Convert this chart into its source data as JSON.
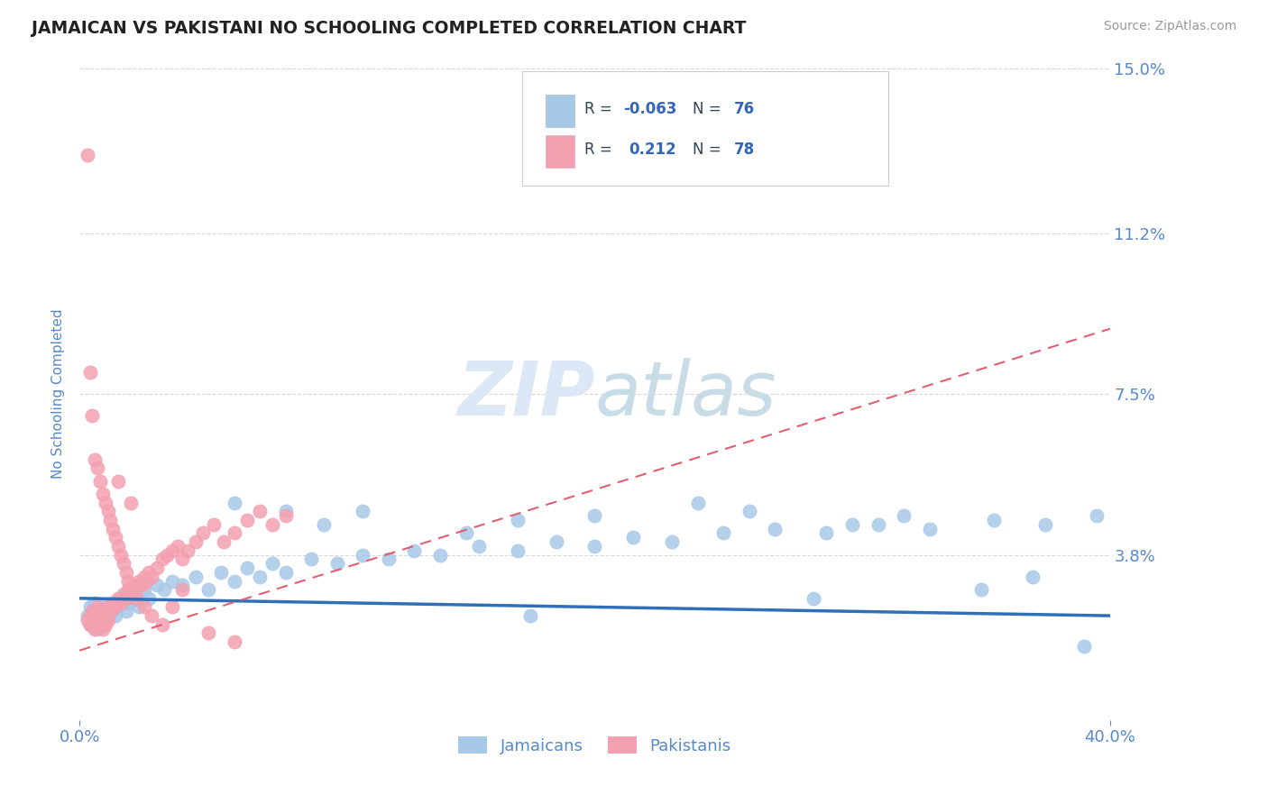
{
  "title": "JAMAICAN VS PAKISTANI NO SCHOOLING COMPLETED CORRELATION CHART",
  "source": "Source: ZipAtlas.com",
  "ylabel": "No Schooling Completed",
  "xlim": [
    0.0,
    0.4
  ],
  "ylim": [
    0.0,
    0.15
  ],
  "xtick_labels": [
    "0.0%",
    "40.0%"
  ],
  "ytick_vals": [
    0.038,
    0.075,
    0.112,
    0.15
  ],
  "ytick_labels": [
    "3.8%",
    "7.5%",
    "11.2%",
    "15.0%"
  ],
  "legend_r_jamaican": "-0.063",
  "legend_n_jamaican": "76",
  "legend_r_pakistani": "0.212",
  "legend_n_pakistani": "78",
  "jamaican_color": "#a8c8e8",
  "pakistani_color": "#f4a0b0",
  "trend_jamaican_color": "#3070b8",
  "trend_pakistani_color": "#e06070",
  "axis_label_color": "#5588cc",
  "tick_color": "#5588cc",
  "grid_color": "#d8d8d8",
  "watermark_color": "#dce8f5",
  "legend_text_color": "#334455",
  "legend_rval_color": "#3366bb",
  "jamaican_x": [
    0.003,
    0.004,
    0.004,
    0.005,
    0.006,
    0.006,
    0.007,
    0.007,
    0.008,
    0.009,
    0.009,
    0.01,
    0.01,
    0.011,
    0.012,
    0.013,
    0.013,
    0.014,
    0.015,
    0.016,
    0.017,
    0.018,
    0.019,
    0.02,
    0.022,
    0.023,
    0.025,
    0.027,
    0.03,
    0.033,
    0.036,
    0.04,
    0.045,
    0.05,
    0.055,
    0.06,
    0.065,
    0.07,
    0.075,
    0.08,
    0.09,
    0.1,
    0.11,
    0.12,
    0.13,
    0.14,
    0.155,
    0.17,
    0.185,
    0.2,
    0.215,
    0.23,
    0.25,
    0.27,
    0.29,
    0.31,
    0.33,
    0.355,
    0.375,
    0.395,
    0.06,
    0.08,
    0.095,
    0.11,
    0.15,
    0.17,
    0.2,
    0.24,
    0.26,
    0.3,
    0.32,
    0.35,
    0.37,
    0.39,
    0.175,
    0.285
  ],
  "jamaican_y": [
    0.024,
    0.022,
    0.026,
    0.025,
    0.023,
    0.027,
    0.021,
    0.025,
    0.024,
    0.022,
    0.026,
    0.025,
    0.023,
    0.024,
    0.026,
    0.025,
    0.027,
    0.024,
    0.026,
    0.028,
    0.027,
    0.025,
    0.027,
    0.029,
    0.028,
    0.026,
    0.03,
    0.028,
    0.031,
    0.03,
    0.032,
    0.031,
    0.033,
    0.03,
    0.034,
    0.032,
    0.035,
    0.033,
    0.036,
    0.034,
    0.037,
    0.036,
    0.038,
    0.037,
    0.039,
    0.038,
    0.04,
    0.039,
    0.041,
    0.04,
    0.042,
    0.041,
    0.043,
    0.044,
    0.043,
    0.045,
    0.044,
    0.046,
    0.045,
    0.047,
    0.05,
    0.048,
    0.045,
    0.048,
    0.043,
    0.046,
    0.047,
    0.05,
    0.048,
    0.045,
    0.047,
    0.03,
    0.033,
    0.017,
    0.024,
    0.028
  ],
  "pakistani_x": [
    0.003,
    0.004,
    0.004,
    0.005,
    0.005,
    0.006,
    0.006,
    0.007,
    0.007,
    0.008,
    0.008,
    0.009,
    0.009,
    0.01,
    0.01,
    0.011,
    0.011,
    0.012,
    0.013,
    0.014,
    0.015,
    0.016,
    0.017,
    0.018,
    0.019,
    0.02,
    0.021,
    0.022,
    0.023,
    0.024,
    0.025,
    0.026,
    0.027,
    0.028,
    0.03,
    0.032,
    0.034,
    0.036,
    0.038,
    0.04,
    0.042,
    0.045,
    0.048,
    0.052,
    0.056,
    0.06,
    0.065,
    0.07,
    0.075,
    0.08,
    0.003,
    0.004,
    0.005,
    0.006,
    0.007,
    0.008,
    0.009,
    0.01,
    0.011,
    0.012,
    0.013,
    0.014,
    0.015,
    0.016,
    0.017,
    0.018,
    0.019,
    0.02,
    0.022,
    0.025,
    0.028,
    0.032,
    0.036,
    0.04,
    0.05,
    0.06,
    0.015,
    0.02
  ],
  "pakistani_y": [
    0.023,
    0.022,
    0.024,
    0.022,
    0.025,
    0.021,
    0.024,
    0.022,
    0.026,
    0.023,
    0.025,
    0.021,
    0.024,
    0.022,
    0.025,
    0.023,
    0.026,
    0.025,
    0.027,
    0.026,
    0.028,
    0.027,
    0.029,
    0.028,
    0.03,
    0.029,
    0.031,
    0.03,
    0.032,
    0.031,
    0.033,
    0.032,
    0.034,
    0.033,
    0.035,
    0.037,
    0.038,
    0.039,
    0.04,
    0.037,
    0.039,
    0.041,
    0.043,
    0.045,
    0.041,
    0.043,
    0.046,
    0.048,
    0.045,
    0.047,
    0.13,
    0.08,
    0.07,
    0.06,
    0.058,
    0.055,
    0.052,
    0.05,
    0.048,
    0.046,
    0.044,
    0.042,
    0.04,
    0.038,
    0.036,
    0.034,
    0.032,
    0.03,
    0.028,
    0.026,
    0.024,
    0.022,
    0.026,
    0.03,
    0.02,
    0.018,
    0.055,
    0.05
  ],
  "jam_trend_x0": 0.0,
  "jam_trend_x1": 0.4,
  "jam_trend_y0": 0.028,
  "jam_trend_y1": 0.024,
  "pak_trend_x0": 0.0,
  "pak_trend_x1": 0.4,
  "pak_trend_y0": 0.016,
  "pak_trend_y1": 0.09
}
